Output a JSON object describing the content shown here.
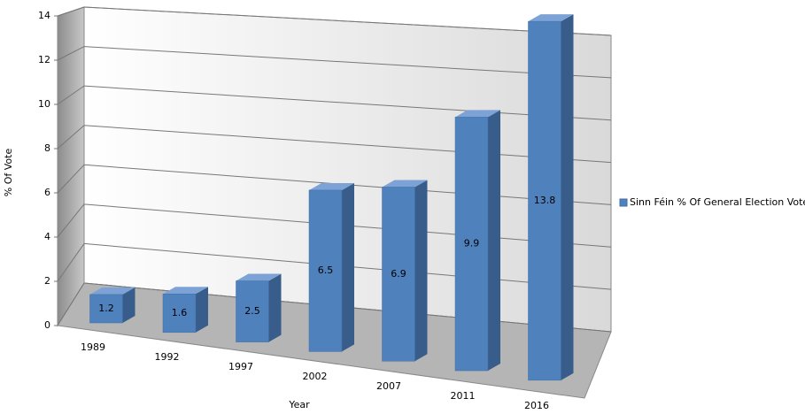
{
  "chart_data": {
    "type": "bar3d",
    "y_label": "% Of Vote",
    "x_label": "Year",
    "categories": [
      "1989",
      "1992",
      "1997",
      "2002",
      "2007",
      "2011",
      "2016"
    ],
    "series": [
      {
        "name": "Sinn Féin % Of General Election Vote",
        "color": "#4f81bd",
        "values": [
          1.2,
          1.6,
          2.5,
          6.5,
          6.9,
          9.9,
          13.8
        ]
      }
    ],
    "ylim": [
      0,
      14
    ],
    "yticks": [
      0,
      2,
      4,
      6,
      8,
      10,
      12,
      14
    ],
    "grid": true,
    "legend": "right"
  }
}
